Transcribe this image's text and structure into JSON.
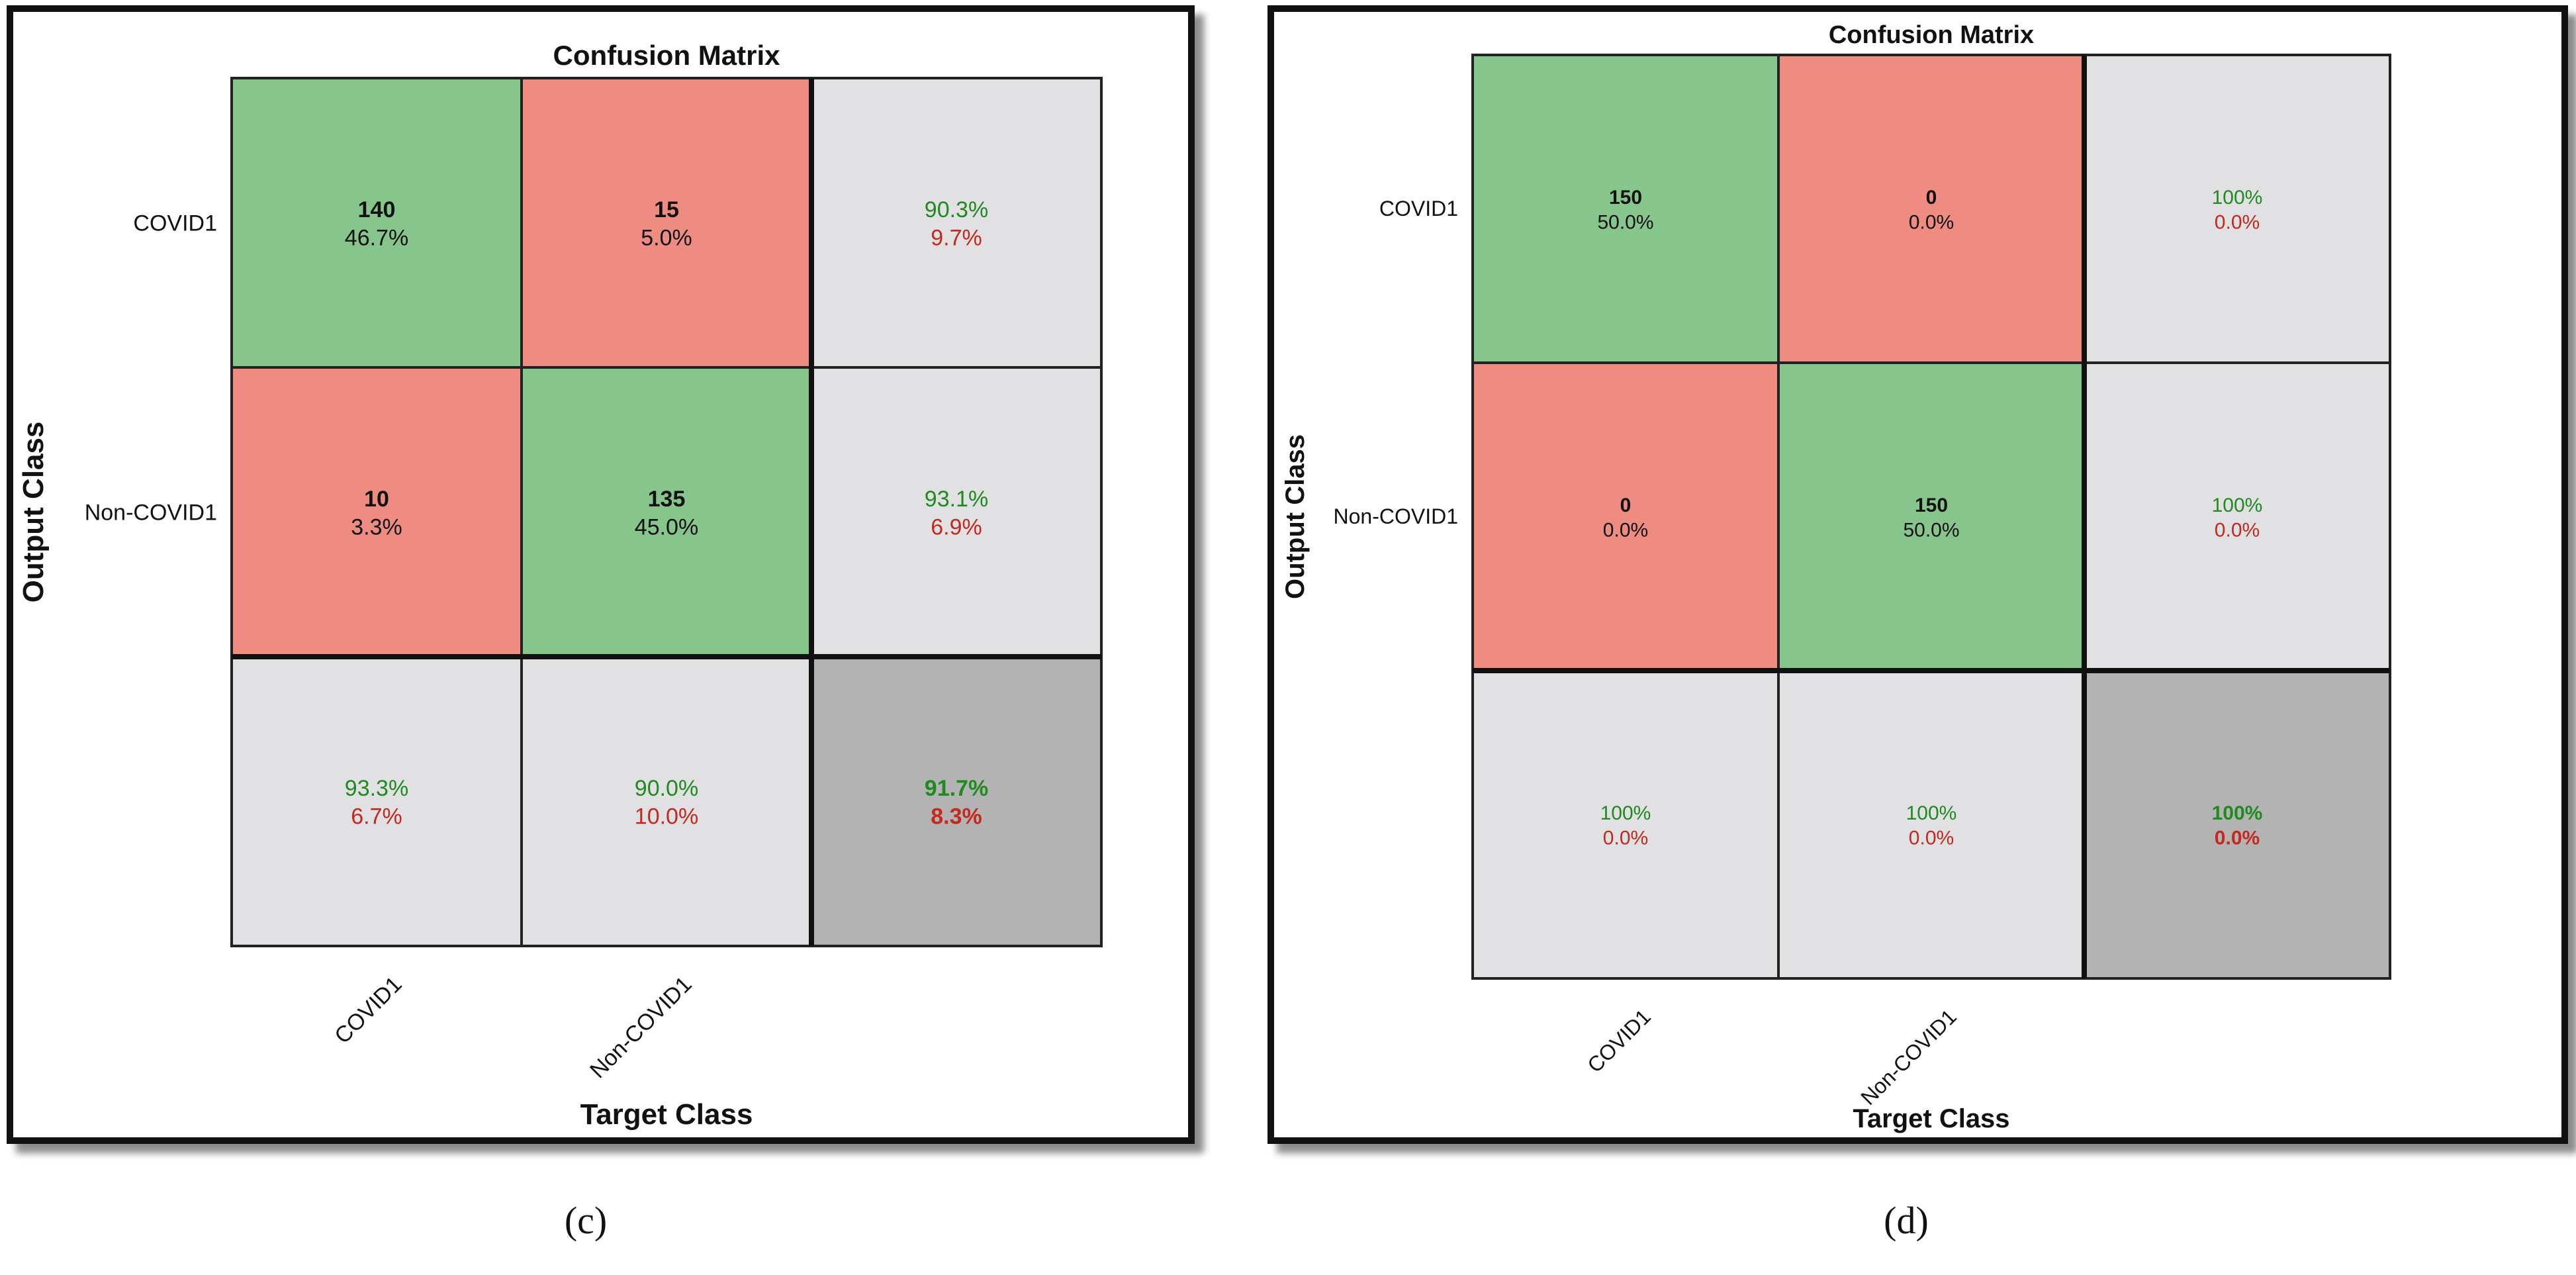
{
  "colors": {
    "correct": "#86c58c",
    "incorrect": "#ef8c82",
    "summary": "#e1e1e3",
    "total": "#b3b3b3",
    "good_text": "#1f8a1f",
    "bad_text": "#c4281e",
    "grid": "#222222"
  },
  "chart_data": [
    {
      "type": "heatmap",
      "title": "Confusion Matrix",
      "xlabel": "Target Class",
      "ylabel": "Output Class",
      "classes": [
        "COVID1",
        "Non-COVID1"
      ],
      "counts": [
        [
          140,
          15
        ],
        [
          10,
          135
        ]
      ],
      "cell_percents": [
        [
          "46.7%",
          "5.0%"
        ],
        [
          "3.3%",
          "45.0%"
        ]
      ],
      "row_summary": [
        [
          "90.3%",
          "9.7%"
        ],
        [
          "93.1%",
          "6.9%"
        ]
      ],
      "col_summary": [
        [
          "93.3%",
          "6.7%"
        ],
        [
          "90.0%",
          "10.0%"
        ]
      ],
      "overall": [
        "91.7%",
        "8.3%"
      ],
      "caption": "(c)"
    },
    {
      "type": "heatmap",
      "title": "Confusion Matrix",
      "xlabel": "Target Class",
      "ylabel": "Output Class",
      "classes": [
        "COVID1",
        "Non-COVID1"
      ],
      "counts": [
        [
          150,
          0
        ],
        [
          0,
          150
        ]
      ],
      "cell_percents": [
        [
          "50.0%",
          "0.0%"
        ],
        [
          "0.0%",
          "50.0%"
        ]
      ],
      "row_summary": [
        [
          "100%",
          "0.0%"
        ],
        [
          "100%",
          "0.0%"
        ]
      ],
      "col_summary": [
        [
          "100%",
          "0.0%"
        ],
        [
          "100%",
          "0.0%"
        ]
      ],
      "overall": [
        "100%",
        "0.0%"
      ],
      "caption": "(d)"
    }
  ]
}
